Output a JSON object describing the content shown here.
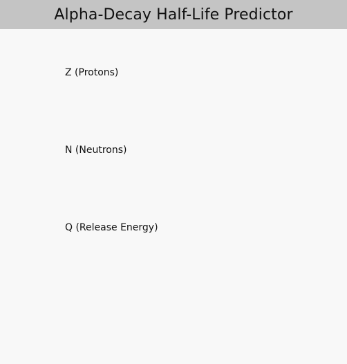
{
  "window": {
    "title": "Alpha-Decay Half-Life Predictor"
  },
  "form": {
    "z": {
      "label": "Z (Protons)",
      "value": ""
    },
    "n": {
      "label": "N (Neutrons)",
      "value": ""
    },
    "q": {
      "label": "Q (Release Energy)",
      "value": ""
    }
  },
  "colors": {
    "title_bar_bg": "#c4c4c4",
    "page_bg": "#f8f8f8",
    "text": "#111111"
  }
}
